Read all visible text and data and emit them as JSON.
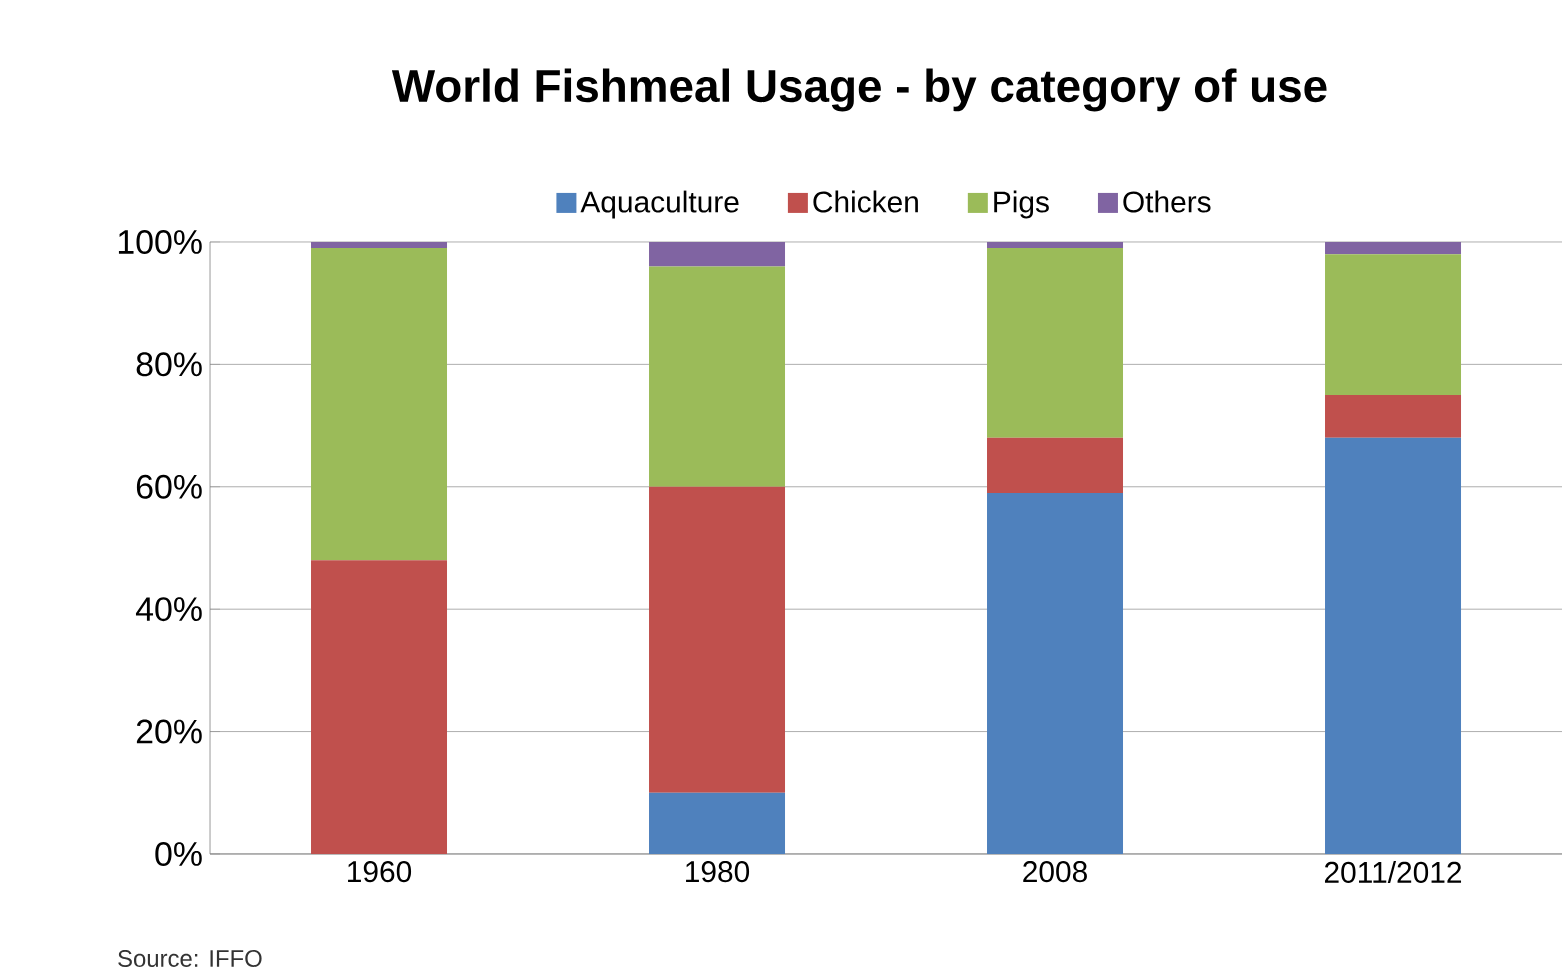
{
  "chart_data": {
    "type": "bar",
    "stacked": true,
    "title": "World Fishmeal Usage - by category of use",
    "categories": [
      "1960",
      "1980",
      "2008",
      "2011/2012"
    ],
    "series": [
      {
        "name": "Aquaculture",
        "color": "#4f81bd",
        "values": [
          0,
          10,
          59,
          68
        ]
      },
      {
        "name": "Chicken",
        "color": "#c0504d",
        "values": [
          48,
          50,
          9,
          7
        ]
      },
      {
        "name": "Pigs",
        "color": "#9bbb59",
        "values": [
          51,
          36,
          31,
          23
        ]
      },
      {
        "name": "Others",
        "color": "#8064a2",
        "values": [
          1,
          4,
          1,
          2
        ]
      }
    ],
    "ylim": [
      0,
      100
    ],
    "yticks": [
      {
        "value": 0,
        "label": "0%"
      },
      {
        "value": 20,
        "label": "20%"
      },
      {
        "value": 40,
        "label": "40%"
      },
      {
        "value": 60,
        "label": "60%"
      },
      {
        "value": 80,
        "label": "80%"
      },
      {
        "value": 100,
        "label": "100%"
      }
    ],
    "grid": "y",
    "legend": "top",
    "annotations": [
      "Source: IFFO"
    ]
  }
}
